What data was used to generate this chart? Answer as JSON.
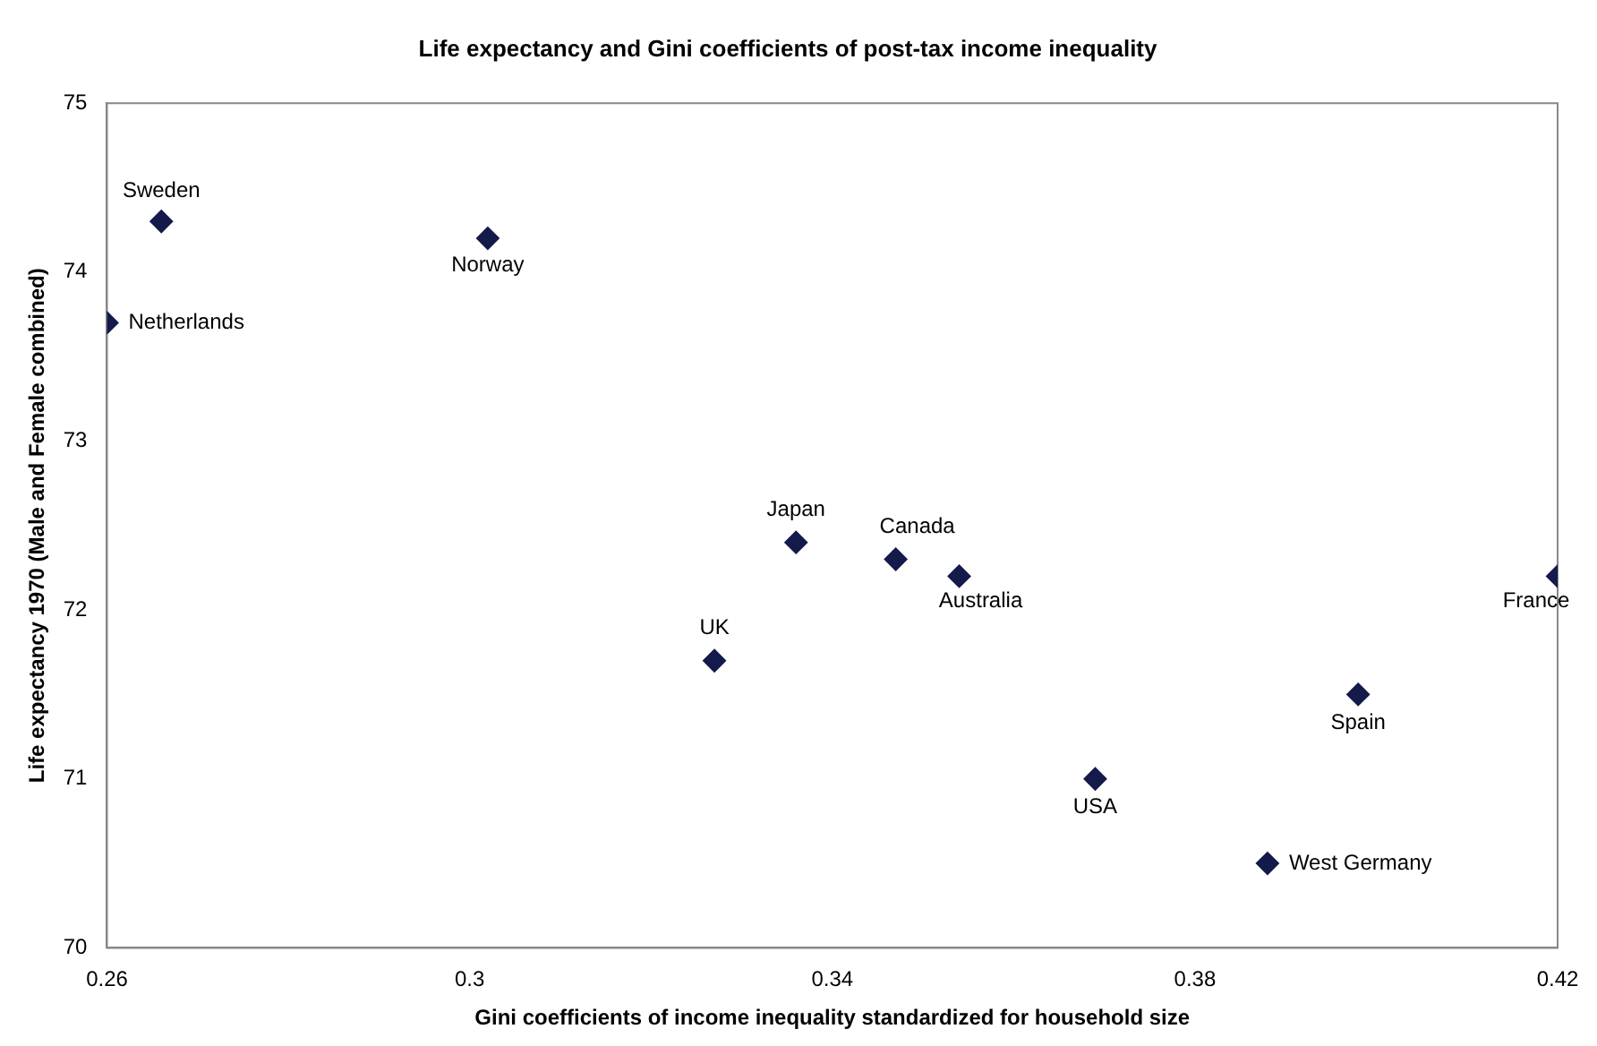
{
  "chart_data": {
    "type": "scatter",
    "title": "Life expectancy and Gini coefficients of post-tax income inequality",
    "xlabel": "Gini coefficients of income inequality standardized for household size",
    "ylabel": "Life expectancy 1970 (Male and Female combined)",
    "x": [
      0.266,
      0.26,
      0.302,
      0.336,
      0.347,
      0.354,
      0.327,
      0.42,
      0.398,
      0.369,
      0.388
    ],
    "values": [
      74.3,
      73.7,
      74.2,
      72.4,
      72.3,
      72.2,
      71.7,
      72.2,
      71.5,
      71.0,
      70.5
    ],
    "color": "#141a4a",
    "marker": "diamond",
    "grid": false,
    "legend": false,
    "xlim": [
      0.26,
      0.42
    ],
    "xticks": [
      0.26,
      0.3,
      0.34,
      0.38,
      0.42
    ],
    "ylim": [
      70,
      75
    ],
    "yticks": [
      70,
      71,
      72,
      73,
      74,
      75
    ],
    "annotations": [
      {
        "text": "Sweden",
        "x": 0.266,
        "y": 74.3
      },
      {
        "text": "Netherlands",
        "x": 0.26,
        "y": 73.7
      },
      {
        "text": "Norway",
        "x": 0.302,
        "y": 74.2
      },
      {
        "text": "Japan",
        "x": 0.336,
        "y": 72.4
      },
      {
        "text": "Canada",
        "x": 0.347,
        "y": 72.3
      },
      {
        "text": "Australia",
        "x": 0.354,
        "y": 72.2
      },
      {
        "text": "UK",
        "x": 0.327,
        "y": 71.7
      },
      {
        "text": "France",
        "x": 0.42,
        "y": 72.2
      },
      {
        "text": "Spain",
        "x": 0.398,
        "y": 71.5
      },
      {
        "text": "USA",
        "x": 0.369,
        "y": 71.0
      },
      {
        "text": "West Germany",
        "x": 0.388,
        "y": 70.5
      }
    ]
  }
}
